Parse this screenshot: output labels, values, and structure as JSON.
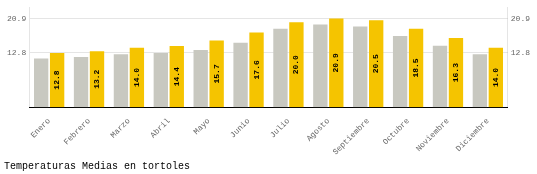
{
  "chart_data": {
    "type": "bar",
    "title": "Temperaturas Medias en tortoles",
    "categories": [
      "Enero",
      "Febrero",
      "Marzo",
      "Abril",
      "Mayo",
      "Junio",
      "Julio",
      "Agosto",
      "Septiembre",
      "Octubre",
      "Noviembre",
      "Diciembre"
    ],
    "series": [
      {
        "color": "#C8C8C0",
        "values": [
          11.5,
          11.8,
          12.5,
          12.8,
          13.5,
          15.2,
          18.5,
          19.5,
          19.0,
          16.8,
          14.5,
          12.5
        ]
      },
      {
        "color": "#F5C400",
        "values": [
          12.8,
          13.2,
          14.0,
          14.4,
          15.7,
          17.6,
          20.0,
          20.9,
          20.5,
          18.5,
          16.3,
          14.0
        ],
        "data_labels": true,
        "value_labels": [
          "12.8",
          "13.2",
          "14.0",
          "14.4",
          "15.7",
          "17.6",
          "20.0",
          "20.9",
          "20.5",
          "18.5",
          "16.3",
          "14.0"
        ]
      }
    ],
    "ylim": [
      0,
      23.408
    ],
    "yticks": [
      12.8,
      20.9
    ],
    "y2lim": [
      0,
      23.408
    ],
    "y2ticks": [
      12.8,
      20.9
    ],
    "grid": true
  }
}
